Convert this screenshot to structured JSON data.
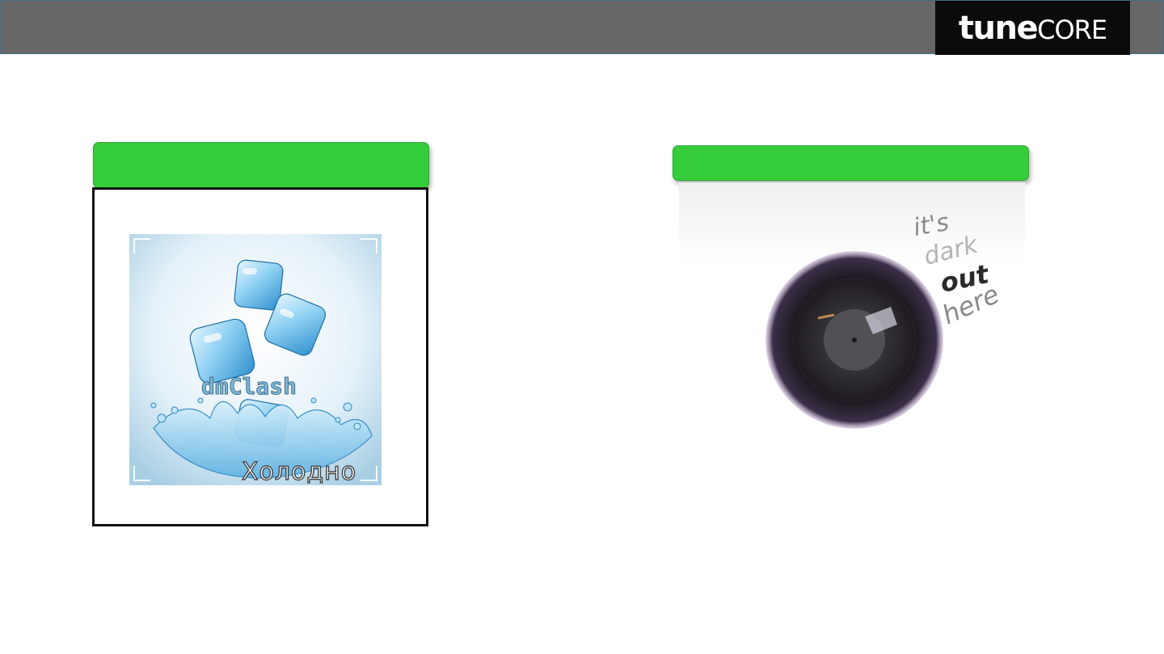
{
  "header": {
    "logo_bold": "tune",
    "logo_light": "CORE"
  },
  "left_card": {
    "artist": "dmClash",
    "title": "Холодно"
  },
  "right_card": {
    "handwriting": [
      "it's",
      "dark",
      "out",
      "here"
    ]
  }
}
